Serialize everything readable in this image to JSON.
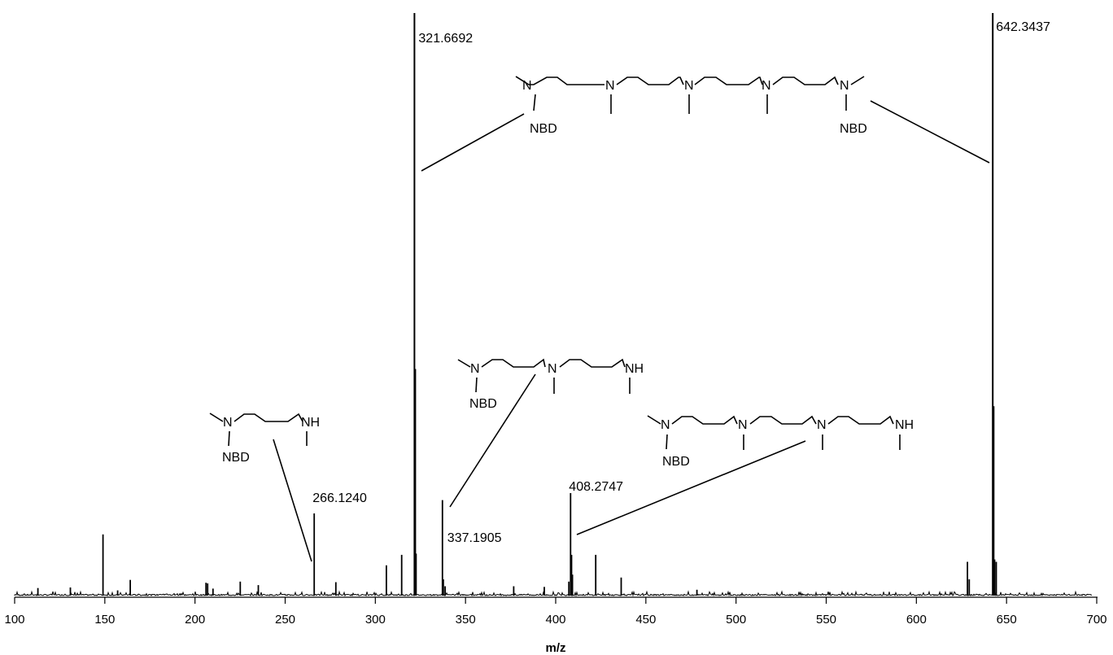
{
  "chart_data": {
    "type": "bar",
    "title": "",
    "xlabel": "m/z",
    "ylabel": "",
    "xlim": [
      100,
      700
    ],
    "ylim": [
      0,
      100
    ],
    "grid": false,
    "x_ticks": [
      "100",
      "150",
      "200",
      "250",
      "300",
      "350",
      "400",
      "450",
      "500",
      "550",
      "600",
      "650",
      "700"
    ],
    "series": [
      {
        "values": [
          {
            "x": 112.9,
            "y": 1.3
          },
          {
            "x": 130.9,
            "y": 1.4
          },
          {
            "x": 149.0,
            "y": 10.5
          },
          {
            "x": 157.1,
            "y": 0.9
          },
          {
            "x": 164.1,
            "y": 2.7
          },
          {
            "x": 206.1,
            "y": 2.2
          },
          {
            "x": 207.0,
            "y": 2.1
          },
          {
            "x": 210.0,
            "y": 1.2
          },
          {
            "x": 225.1,
            "y": 2.4
          },
          {
            "x": 235.1,
            "y": 1.8
          },
          {
            "x": 266.124,
            "y": 14.1
          },
          {
            "x": 278.1,
            "y": 2.3
          },
          {
            "x": 306.1,
            "y": 5.2
          },
          {
            "x": 314.6,
            "y": 7.0
          },
          {
            "x": 321.6692,
            "y": 100
          },
          {
            "x": 322.2,
            "y": 38.9
          },
          {
            "x": 322.6,
            "y": 7.2
          },
          {
            "x": 337.1905,
            "y": 16.4
          },
          {
            "x": 337.7,
            "y": 2.8
          },
          {
            "x": 338.7,
            "y": 1.6
          },
          {
            "x": 376.7,
            "y": 1.6
          },
          {
            "x": 393.7,
            "y": 1.5
          },
          {
            "x": 407.3,
            "y": 2.4
          },
          {
            "x": 408.2747,
            "y": 17.6
          },
          {
            "x": 408.8,
            "y": 7.0
          },
          {
            "x": 409.3,
            "y": 3.6
          },
          {
            "x": 422.2,
            "y": 7.0
          },
          {
            "x": 436.3,
            "y": 3.1
          },
          {
            "x": 478.3,
            "y": 1.0
          },
          {
            "x": 628.3,
            "y": 5.8
          },
          {
            "x": 629.3,
            "y": 2.8
          },
          {
            "x": 642.3437,
            "y": 100
          },
          {
            "x": 642.9,
            "y": 32.5
          },
          {
            "x": 643.4,
            "y": 6.2
          },
          {
            "x": 644.3,
            "y": 5.8
          }
        ]
      }
    ],
    "peak_labels": [
      {
        "x": 321.6692,
        "text": "321.6692"
      },
      {
        "x": 642.3437,
        "text": "642.3437"
      },
      {
        "x": 266.124,
        "text": "266.1240"
      },
      {
        "x": 337.1905,
        "text": "337.1905"
      },
      {
        "x": 408.2747,
        "text": "408.2747"
      }
    ],
    "annotations": {
      "nbd": "NBD",
      "n": "N",
      "nh": "NH"
    }
  }
}
